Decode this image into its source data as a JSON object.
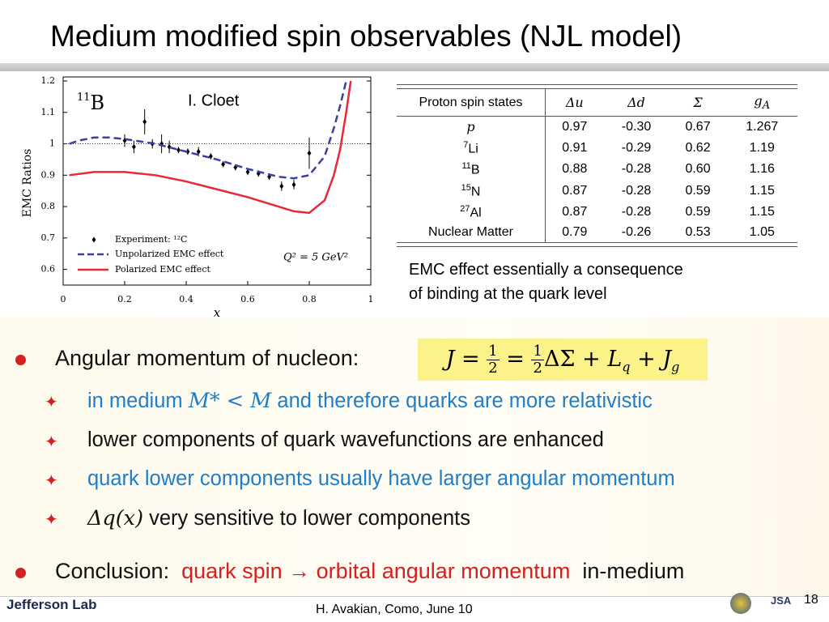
{
  "title": "Medium modified spin observables (NJL model)",
  "chart_data": {
    "type": "line",
    "nucleus": {
      "mass": "11",
      "symbol": "B"
    },
    "annotation": "I. Cloet",
    "scale_note": "Q² = 5 GeV²",
    "x_label": "x",
    "y_label": "EMC Ratios",
    "xlim": [
      0,
      1
    ],
    "ylim": [
      0.55,
      1.2
    ],
    "xticks": [
      0,
      0.2,
      0.4,
      0.6,
      0.8,
      1
    ],
    "yticks": [
      0.6,
      0.7,
      0.8,
      0.9,
      1,
      1.1,
      1.2
    ],
    "reference_line": 1,
    "series": [
      {
        "name": "Experiment: ¹²C",
        "color": "#000000",
        "style": "points",
        "x": [
          0.2,
          0.23,
          0.265,
          0.29,
          0.32,
          0.345,
          0.375,
          0.405,
          0.44,
          0.48,
          0.52,
          0.56,
          0.6,
          0.635,
          0.67,
          0.71,
          0.75,
          0.8
        ],
        "values": [
          1.01,
          0.99,
          1.07,
          1.0,
          1.0,
          0.99,
          0.98,
          0.975,
          0.975,
          0.96,
          0.935,
          0.925,
          0.91,
          0.905,
          0.895,
          0.865,
          0.87,
          0.97
        ],
        "errors": [
          0.02,
          0.02,
          0.04,
          0.015,
          0.03,
          0.02,
          0.01,
          0.01,
          0.015,
          0.01,
          0.01,
          0.01,
          0.01,
          0.01,
          0.01,
          0.015,
          0.015,
          0.05
        ]
      },
      {
        "name": "Unpolarized EMC effect",
        "color": "#3b3fa0",
        "style": "dashed",
        "x": [
          0.02,
          0.05,
          0.1,
          0.15,
          0.2,
          0.3,
          0.4,
          0.5,
          0.6,
          0.7,
          0.75,
          0.8,
          0.85,
          0.88,
          0.9,
          0.92
        ],
        "values": [
          1.0,
          1.01,
          1.02,
          1.02,
          1.015,
          1.0,
          0.975,
          0.95,
          0.92,
          0.895,
          0.89,
          0.9,
          0.96,
          1.05,
          1.12,
          1.2
        ]
      },
      {
        "name": "Polarized EMC effect",
        "color": "#e8283a",
        "style": "solid",
        "x": [
          0.02,
          0.1,
          0.2,
          0.3,
          0.4,
          0.5,
          0.6,
          0.7,
          0.75,
          0.8,
          0.85,
          0.88,
          0.9,
          0.92,
          0.935
        ],
        "values": [
          0.9,
          0.91,
          0.91,
          0.9,
          0.88,
          0.855,
          0.83,
          0.8,
          0.785,
          0.78,
          0.82,
          0.9,
          0.98,
          1.1,
          1.2
        ]
      }
    ]
  },
  "table": {
    "header": [
      "Proton spin states",
      "Δu",
      "Δd",
      "Σ",
      {
        "symbol": "g",
        "sub": "A"
      }
    ],
    "rows": [
      [
        {
          "sup": "",
          "text": "p"
        },
        "0.97",
        "-0.30",
        "0.67",
        "1.267"
      ],
      [
        {
          "sup": "7",
          "text": "Li"
        },
        "0.91",
        "-0.29",
        "0.62",
        "1.19"
      ],
      [
        {
          "sup": "11",
          "text": "B"
        },
        "0.88",
        "-0.28",
        "0.60",
        "1.16"
      ],
      [
        {
          "sup": "15",
          "text": "N"
        },
        "0.87",
        "-0.28",
        "0.59",
        "1.15"
      ],
      [
        {
          "sup": "27",
          "text": "Al"
        },
        "0.87",
        "-0.28",
        "0.59",
        "1.15"
      ],
      [
        {
          "sup": "",
          "text": "Nuclear Matter"
        },
        "0.79",
        "-0.26",
        "0.53",
        "1.05"
      ]
    ]
  },
  "caption": [
    "EMC effect essentially a consequence",
    "of binding at the quark level"
  ],
  "bullets": {
    "main": "Angular momentum of nucleon:",
    "formula": {
      "lhs": "J",
      "eq": "=",
      "num": "1",
      "den": "2",
      "dsigma": "ΔΣ",
      "plus": "+",
      "L": "L",
      "Lsub": "q",
      "J": "J",
      "Jsub": "g"
    },
    "items": [
      [
        "in medium",
        "M* < M",
        "and therefore quarks are more relativistic"
      ],
      [
        "lower components of quark wavefunctions are enhanced"
      ],
      [
        "quark lower components usually have larger angular momentum"
      ],
      [
        "Δq(x)",
        "very sensitive to lower components"
      ]
    ],
    "conclusion": [
      "Conclusion:",
      "quark spin → orbital angular momentum",
      "in-medium"
    ]
  },
  "footer": {
    "lab": "Jefferson Lab",
    "credit": "H. Avakian, Como,  June 10",
    "page": "18",
    "logo_text": "JSA"
  }
}
